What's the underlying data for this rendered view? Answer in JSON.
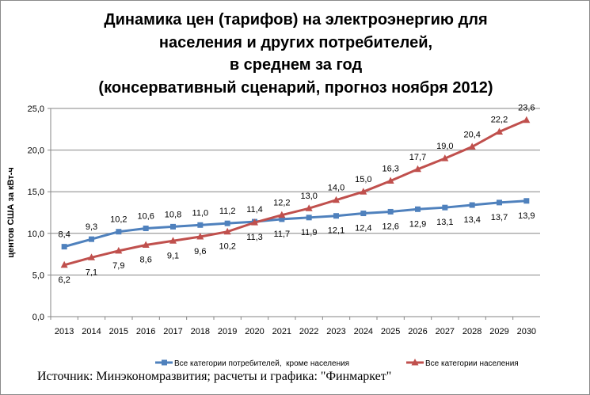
{
  "chart_data": {
    "type": "line",
    "title_lines": [
      "Динамика цен (тарифов) на электроэнергию для",
      "населения и других потребителей,",
      "в среднем за год",
      "(консервативный сценарий, прогноз ноября 2012)"
    ],
    "xlabel": "",
    "ylabel": "центов США за кВт-ч",
    "ylim": [
      0,
      25
    ],
    "yticks": [
      "0,0",
      "5,0",
      "10,0",
      "15,0",
      "20,0",
      "25,0"
    ],
    "grid": true,
    "legend_position": "bottom",
    "categories": [
      "2013",
      "2014",
      "2015",
      "2016",
      "2017",
      "2018",
      "2019",
      "2020",
      "2021",
      "2022",
      "2023",
      "2024",
      "2025",
      "2026",
      "2027",
      "2028",
      "2029",
      "2030"
    ],
    "series": [
      {
        "name": "Все категории потребителей,  кроме населения",
        "color": "#4f81bd",
        "marker": "square",
        "values": [
          8.4,
          9.3,
          10.2,
          10.6,
          10.8,
          11.0,
          11.2,
          11.4,
          11.7,
          11.9,
          12.1,
          12.4,
          12.6,
          12.9,
          13.1,
          13.4,
          13.7,
          13.9
        ]
      },
      {
        "name": "Все категории населения",
        "color": "#c0504d",
        "marker": "triangle",
        "values": [
          6.2,
          7.1,
          7.9,
          8.6,
          9.1,
          9.6,
          10.2,
          11.3,
          12.2,
          13.0,
          14.0,
          15.0,
          16.3,
          17.7,
          19.0,
          20.4,
          22.2,
          23.6
        ]
      }
    ]
  },
  "source": "Источник: Минэкономразвития; расчеты и графика: \"Финмаркет\""
}
